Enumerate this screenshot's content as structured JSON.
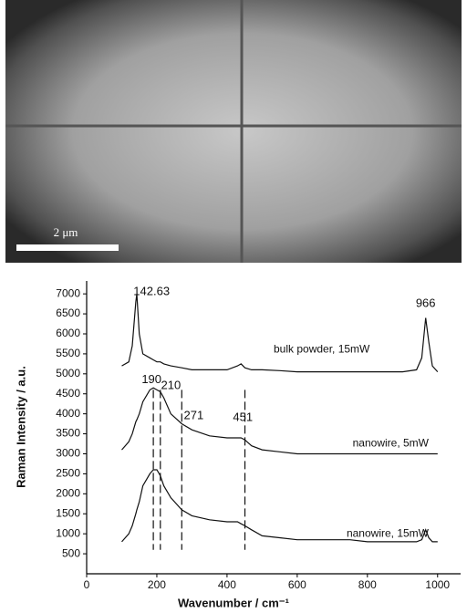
{
  "image": {
    "scale_bar": "2 μm"
  },
  "chart_data": {
    "type": "line",
    "x_label": "Wavenumber / cm⁻¹",
    "y_label": "Raman Intensity / a.u.",
    "xlim": [
      0,
      1050
    ],
    "ylim": [
      0,
      7300
    ],
    "xticks": [
      0,
      200,
      400,
      600,
      800,
      1000
    ],
    "yticks": [
      500,
      1000,
      1500,
      2000,
      2500,
      3000,
      3500,
      4000,
      4500,
      5000,
      5500,
      6000,
      6500,
      7000
    ],
    "x": [
      100,
      120,
      130,
      140,
      143,
      150,
      160,
      180,
      190,
      200,
      210,
      220,
      240,
      271,
      300,
      350,
      400,
      430,
      440,
      451,
      470,
      500,
      550,
      600,
      650,
      700,
      750,
      800,
      850,
      900,
      940,
      955,
      966,
      975,
      985,
      1000
    ],
    "series": [
      {
        "name": "bulk powder, 15mW",
        "color": "#111111",
        "values": [
          5200,
          5300,
          5700,
          6800,
          7000,
          6000,
          5500,
          5400,
          5350,
          5300,
          5300,
          5250,
          5200,
          5150,
          5100,
          5100,
          5100,
          5200,
          5250,
          5150,
          5100,
          5100,
          5080,
          5050,
          5050,
          5050,
          5050,
          5050,
          5050,
          5050,
          5100,
          5400,
          6400,
          5800,
          5200,
          5050
        ]
      },
      {
        "name": "nanowire, 5mW",
        "color": "#111111",
        "values": [
          3100,
          3300,
          3500,
          3800,
          3850,
          4000,
          4300,
          4600,
          4650,
          4600,
          4550,
          4400,
          4000,
          3750,
          3600,
          3450,
          3400,
          3400,
          3400,
          3350,
          3200,
          3100,
          3050,
          3000,
          3000,
          3000,
          3000,
          3000,
          3000,
          3000,
          3000,
          3000,
          3000,
          3000,
          3000,
          3000
        ]
      },
      {
        "name": "nanowire, 15mW",
        "color": "#111111",
        "values": [
          800,
          1000,
          1200,
          1500,
          1600,
          1800,
          2200,
          2500,
          2600,
          2600,
          2450,
          2200,
          1900,
          1600,
          1450,
          1350,
          1300,
          1300,
          1250,
          1200,
          1100,
          950,
          900,
          850,
          850,
          850,
          850,
          800,
          800,
          800,
          800,
          850,
          1100,
          900,
          800,
          800
        ]
      }
    ],
    "markers": [
      190,
      210,
      271,
      451
    ],
    "marker_range": [
      600,
      4600
    ],
    "annotations": [
      {
        "text": "142.63",
        "x": 185,
        "y": 7050
      },
      {
        "text": "966",
        "x": 966,
        "y": 6750
      },
      {
        "text": "190",
        "x": 185,
        "y": 4850
      },
      {
        "text": "210",
        "x": 240,
        "y": 4700
      },
      {
        "text": "271",
        "x": 305,
        "y": 3950
      },
      {
        "text": "451",
        "x": 445,
        "y": 3900
      }
    ]
  }
}
